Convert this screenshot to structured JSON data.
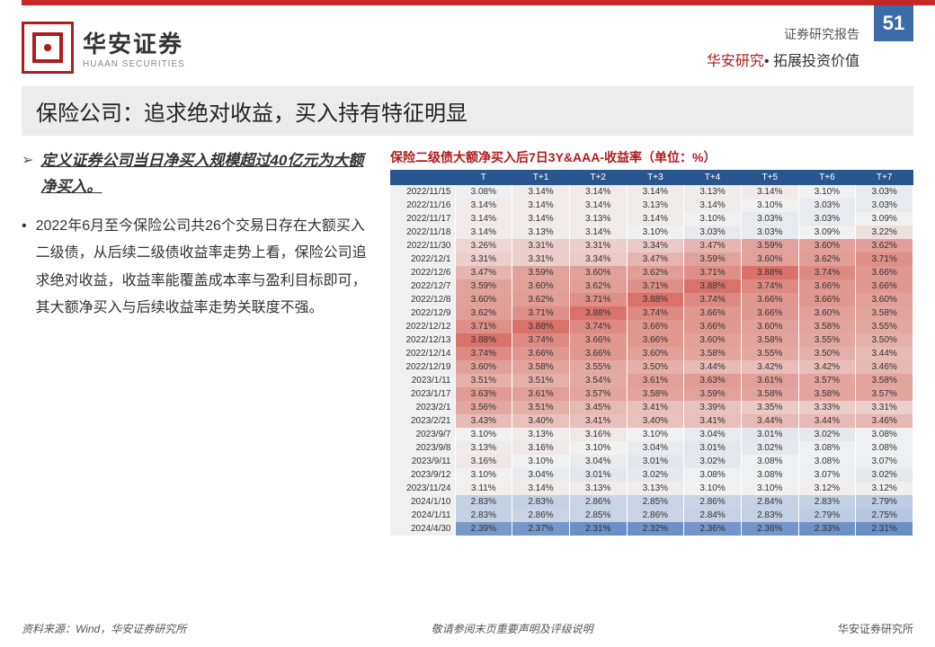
{
  "page_number": "51",
  "header": {
    "logo_cn": "华安证券",
    "logo_en": "HUAAN SECURITIES",
    "report_type": "证券研究报告",
    "tagline_red": "华安研究",
    "tagline_black": "拓展投资价值"
  },
  "title": "保险公司：追求绝对收益，买入持有特征明显",
  "bullet_def": "定义证券公司当日净买入规模超过40亿元为大额净买入。",
  "bullet_body": "2022年6月至今保险公司共26个交易日存在大额买入二级债，从后续二级债收益率走势上看，保险公司追求绝对收益，收益率能覆盖成本率与盈利目标即可，其大额净买入与后续收益率走势关联度不强。",
  "table": {
    "title": "保险二级债大额净买入后7日3Y&AAA-收益率（单位：%）",
    "columns": [
      "",
      "T",
      "T+1",
      "T+2",
      "T+3",
      "T+4",
      "T+5",
      "T+6",
      "T+7"
    ],
    "rows": [
      {
        "d": "2022/11/15",
        "v": [
          3.08,
          3.14,
          3.14,
          3.14,
          3.13,
          3.14,
          3.1,
          3.03
        ]
      },
      {
        "d": "2022/11/16",
        "v": [
          3.14,
          3.14,
          3.14,
          3.13,
          3.14,
          3.1,
          3.03,
          3.03
        ]
      },
      {
        "d": "2022/11/17",
        "v": [
          3.14,
          3.14,
          3.13,
          3.14,
          3.1,
          3.03,
          3.03,
          3.09
        ]
      },
      {
        "d": "2022/11/18",
        "v": [
          3.14,
          3.13,
          3.14,
          3.1,
          3.03,
          3.03,
          3.09,
          3.22
        ]
      },
      {
        "d": "2022/11/30",
        "v": [
          3.26,
          3.31,
          3.31,
          3.34,
          3.47,
          3.59,
          3.6,
          3.62
        ]
      },
      {
        "d": "2022/12/1",
        "v": [
          3.31,
          3.31,
          3.34,
          3.47,
          3.59,
          3.6,
          3.62,
          3.71
        ]
      },
      {
        "d": "2022/12/6",
        "v": [
          3.47,
          3.59,
          3.6,
          3.62,
          3.71,
          3.88,
          3.74,
          3.66
        ]
      },
      {
        "d": "2022/12/7",
        "v": [
          3.59,
          3.6,
          3.62,
          3.71,
          3.88,
          3.74,
          3.66,
          3.66
        ]
      },
      {
        "d": "2022/12/8",
        "v": [
          3.6,
          3.62,
          3.71,
          3.88,
          3.74,
          3.66,
          3.66,
          3.6
        ]
      },
      {
        "d": "2022/12/9",
        "v": [
          3.62,
          3.71,
          3.88,
          3.74,
          3.66,
          3.66,
          3.6,
          3.58
        ]
      },
      {
        "d": "2022/12/12",
        "v": [
          3.71,
          3.88,
          3.74,
          3.66,
          3.66,
          3.6,
          3.58,
          3.55
        ]
      },
      {
        "d": "2022/12/13",
        "v": [
          3.88,
          3.74,
          3.66,
          3.66,
          3.6,
          3.58,
          3.55,
          3.5
        ]
      },
      {
        "d": "2022/12/14",
        "v": [
          3.74,
          3.66,
          3.66,
          3.6,
          3.58,
          3.55,
          3.5,
          3.44
        ]
      },
      {
        "d": "2022/12/19",
        "v": [
          3.6,
          3.58,
          3.55,
          3.5,
          3.44,
          3.42,
          3.42,
          3.46
        ]
      },
      {
        "d": "2023/1/11",
        "v": [
          3.51,
          3.51,
          3.54,
          3.61,
          3.63,
          3.61,
          3.57,
          3.58
        ]
      },
      {
        "d": "2023/1/17",
        "v": [
          3.63,
          3.61,
          3.57,
          3.58,
          3.59,
          3.58,
          3.58,
          3.57
        ]
      },
      {
        "d": "2023/2/1",
        "v": [
          3.56,
          3.51,
          3.45,
          3.41,
          3.39,
          3.35,
          3.33,
          3.31
        ]
      },
      {
        "d": "2023/2/21",
        "v": [
          3.43,
          3.4,
          3.41,
          3.4,
          3.41,
          3.44,
          3.44,
          3.46
        ]
      },
      {
        "d": "2023/9/7",
        "v": [
          3.1,
          3.13,
          3.16,
          3.1,
          3.04,
          3.01,
          3.02,
          3.08
        ]
      },
      {
        "d": "2023/9/8",
        "v": [
          3.13,
          3.16,
          3.1,
          3.04,
          3.01,
          3.02,
          3.08,
          3.08
        ]
      },
      {
        "d": "2023/9/11",
        "v": [
          3.16,
          3.1,
          3.04,
          3.01,
          3.02,
          3.08,
          3.08,
          3.07
        ]
      },
      {
        "d": "2023/9/12",
        "v": [
          3.1,
          3.04,
          3.01,
          3.02,
          3.08,
          3.08,
          3.07,
          3.02
        ]
      },
      {
        "d": "2023/11/24",
        "v": [
          3.11,
          3.14,
          3.13,
          3.13,
          3.1,
          3.1,
          3.12,
          3.12
        ]
      },
      {
        "d": "2024/1/10",
        "v": [
          2.83,
          2.83,
          2.86,
          2.85,
          2.86,
          2.84,
          2.83,
          2.79
        ]
      },
      {
        "d": "2024/1/11",
        "v": [
          2.83,
          2.86,
          2.85,
          2.86,
          2.84,
          2.83,
          2.79,
          2.75
        ]
      },
      {
        "d": "2024/4/30",
        "v": [
          2.39,
          2.37,
          2.31,
          2.32,
          2.36,
          2.36,
          2.33,
          2.31
        ]
      }
    ],
    "heat": {
      "min": 2.31,
      "max": 3.88,
      "low_color": "#6b8fc7",
      "mid_color": "#f2f2f2",
      "high_color": "#d9736a"
    }
  },
  "footer": {
    "source": "资料来源：Wind，华安证券研究所",
    "disclaimer": "敬请参阅末页重要声明及评级说明",
    "org": "华安证券研究所"
  }
}
